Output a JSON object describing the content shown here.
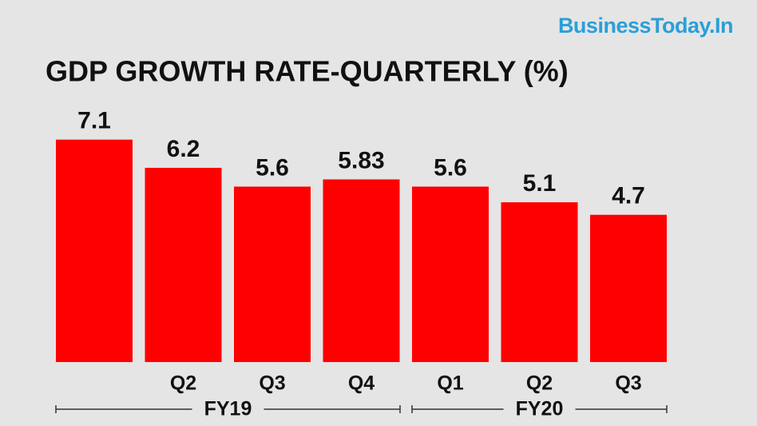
{
  "chart_data": {
    "type": "bar",
    "brand": "BusinessToday.In",
    "title": "GDP GROWTH RATE-QUARTERLY (%)",
    "categories": [
      null,
      "Q2",
      "Q3",
      "Q4",
      "Q1",
      "Q2",
      "Q3"
    ],
    "values": [
      7.1,
      6.2,
      5.6,
      5.83,
      5.6,
      5.1,
      4.7
    ],
    "color": "#ff0000",
    "groups": [
      "FY19",
      "FY20"
    ]
  }
}
